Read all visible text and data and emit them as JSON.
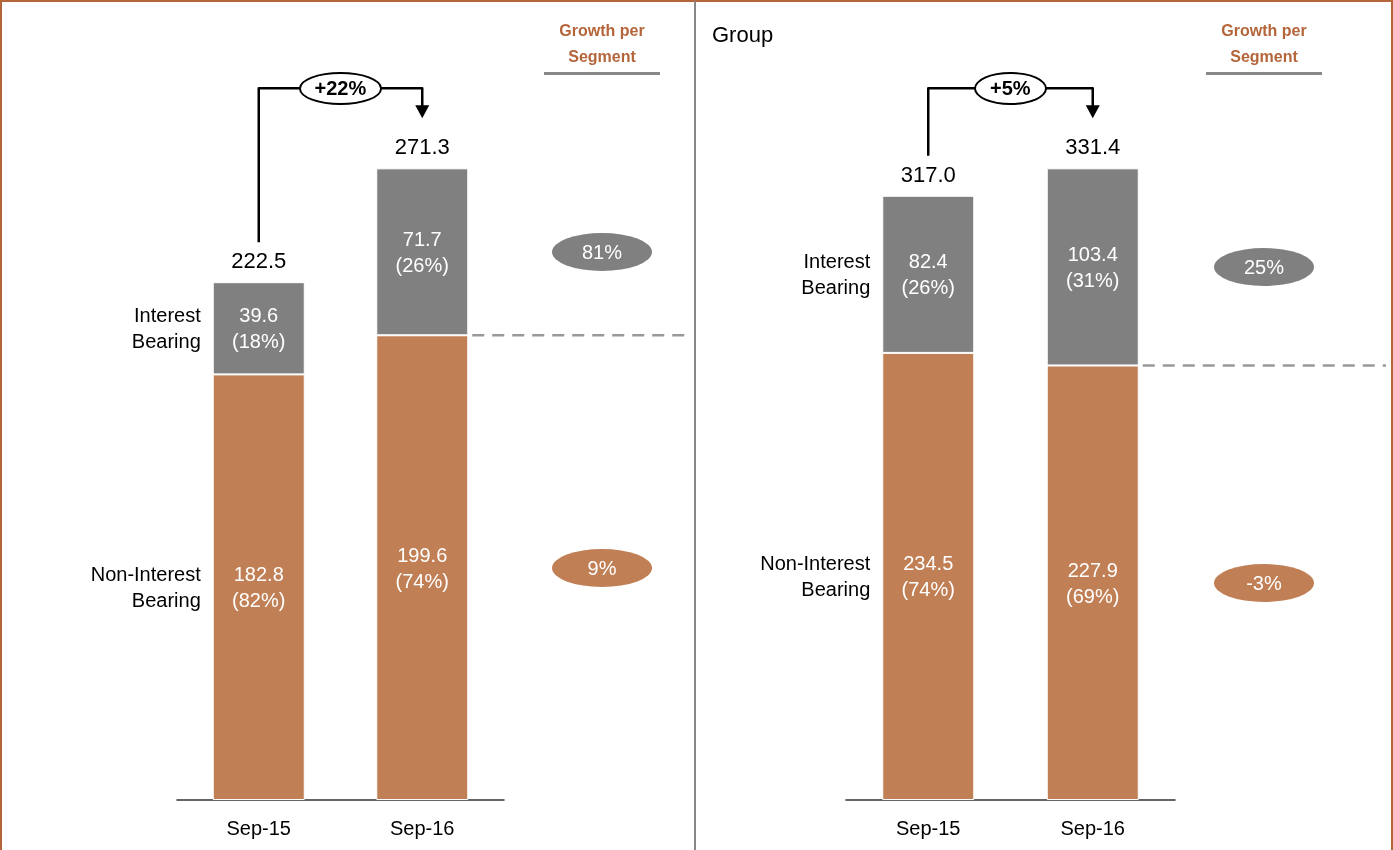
{
  "chart_data": [
    {
      "type": "bar",
      "stacked": true,
      "categories": [
        "Sep-15",
        "Sep-16"
      ],
      "series": [
        {
          "name": "Non-Interest Bearing",
          "color": "#c07f55",
          "values": [
            182.8,
            199.6
          ],
          "value_labels": [
            "182.8 (82%)",
            "199.6 (74%)"
          ]
        },
        {
          "name": "Interest Bearing",
          "color": "#808080",
          "values": [
            39.6,
            71.7
          ],
          "value_labels": [
            "39.6 (18%)",
            "71.7 (26%)"
          ]
        }
      ],
      "totals": [
        "222.5",
        "271.3"
      ],
      "ref_lines": [
        {
          "axis": "y",
          "value": 199.6,
          "color": "#999999",
          "line_style": "dashed"
        }
      ],
      "annotations": [
        "+22%",
        "Growth per Segment",
        "81%",
        "9%"
      ]
    },
    {
      "type": "bar",
      "stacked": true,
      "title": "Group",
      "categories": [
        "Sep-15",
        "Sep-16"
      ],
      "series": [
        {
          "name": "Non-Interest Bearing",
          "color": "#c07f55",
          "values": [
            234.5,
            227.9
          ],
          "value_labels": [
            "234.5 (74%)",
            "227.9 (69%)"
          ]
        },
        {
          "name": "Interest Bearing",
          "color": "#808080",
          "values": [
            82.4,
            103.4
          ],
          "value_labels": [
            "82.4 (26%)",
            "103.4 (31%)"
          ]
        }
      ],
      "totals": [
        "317.0",
        "331.4"
      ],
      "ref_lines": [
        {
          "axis": "y",
          "value": 227.9,
          "color": "#999999",
          "line_style": "dashed"
        }
      ],
      "annotations": [
        "+5%",
        "Growth per Segment",
        "25%",
        "-3%"
      ]
    }
  ]
}
